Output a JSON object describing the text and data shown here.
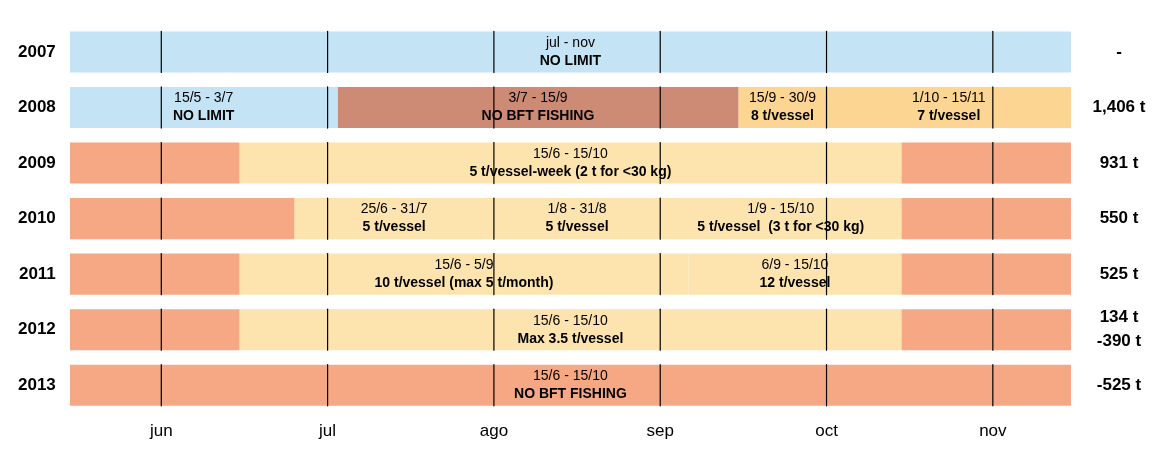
{
  "chart_data": {
    "type": "bar",
    "orientation": "horizontal",
    "stacked": true,
    "categories": [
      "2007",
      "2008",
      "2009",
      "2010",
      "2011",
      "2012",
      "2013"
    ],
    "xlim": [
      0,
      6.02
    ],
    "grid": false,
    "legend": false,
    "series": [
      {
        "values": [
          6.02,
          1.61,
          1.02,
          1.35,
          1.02,
          1.02,
          6.02
        ],
        "colors": [
          "#c4e4f5",
          "#c4e4f5",
          "#f6a784",
          "#f6a784",
          "#f6a784",
          "#f6a784",
          "#f6a784"
        ],
        "value_labels": [
          "jul - nov\nNO LIMIT",
          "15/5 - 3/7\nNO LIMIT",
          null,
          null,
          null,
          null,
          "15/6 - 15/10\nNO BFT FISHING"
        ]
      },
      {
        "values": [
          null,
          2.41,
          3.98,
          1.2,
          2.7,
          3.98,
          null
        ],
        "colors": [
          null,
          "#cd8a74",
          "#fde3ad",
          "#fde3ad",
          "#fde3ad",
          "#fde3ad",
          null
        ],
        "value_labels": [
          null,
          "3/7 - 15/9\nNO BFT FISHING",
          "15/6 - 15/10\n5 t/vessel-week (2 t for <30 kg)",
          "25/6 - 31/7\n5 t/vessel",
          "15/6 - 5/9\n10 t/vessel (max 5 t/month)",
          "15/6 - 15/10\nMax 3.5 t/vessel",
          null
        ]
      },
      {
        "values": [
          null,
          0.53,
          1.02,
          1.0,
          1.28,
          1.02,
          null
        ],
        "colors": [
          null,
          "#fcd592",
          "#f6a784",
          "#fde3ad",
          "#fde3ad",
          "#f6a784",
          null
        ],
        "value_labels": [
          null,
          "15/9 - 30/9\n8 t/vessel",
          null,
          "1/8 - 31/8\n5 t/vessel",
          "6/9 - 15/10\n12 t/vessel",
          null,
          null
        ]
      },
      {
        "values": [
          null,
          1.47,
          null,
          1.45,
          1.02,
          null,
          null
        ],
        "colors": [
          null,
          "#fcd592",
          null,
          "#fde3ad",
          "#f6a784",
          null,
          null
        ],
        "value_labels": [
          null,
          "1/10 - 15/11\n7 t/vessel",
          null,
          "1/9 - 15/10\n5 t/vessel  (3 t for <30 kg)",
          null,
          null,
          null
        ]
      },
      {
        "values": [
          null,
          null,
          null,
          1.02,
          null,
          null,
          null
        ],
        "colors": [
          null,
          null,
          null,
          "#f6a784",
          null,
          null,
          null
        ],
        "value_labels": [
          null,
          null,
          null,
          null,
          null,
          null,
          null
        ]
      }
    ],
    "ref_lines": [
      {
        "axis": "x",
        "value": 0.55,
        "label": "jun",
        "color": "#000000"
      },
      {
        "axis": "x",
        "value": 1.55,
        "label": "jul",
        "color": "#000000"
      },
      {
        "axis": "x",
        "value": 2.55,
        "label": "ago",
        "color": "#000000"
      },
      {
        "axis": "x",
        "value": 3.55,
        "label": "sep",
        "color": "#000000"
      },
      {
        "axis": "x",
        "value": 4.55,
        "label": "oct",
        "color": "#000000"
      },
      {
        "axis": "x",
        "value": 5.55,
        "label": "nov",
        "color": "#000000"
      }
    ],
    "annotations": [
      "-",
      "1,406 t",
      "931 t",
      "550 t",
      "525 t",
      "134 t\n-390 t",
      "-525 t"
    ]
  }
}
